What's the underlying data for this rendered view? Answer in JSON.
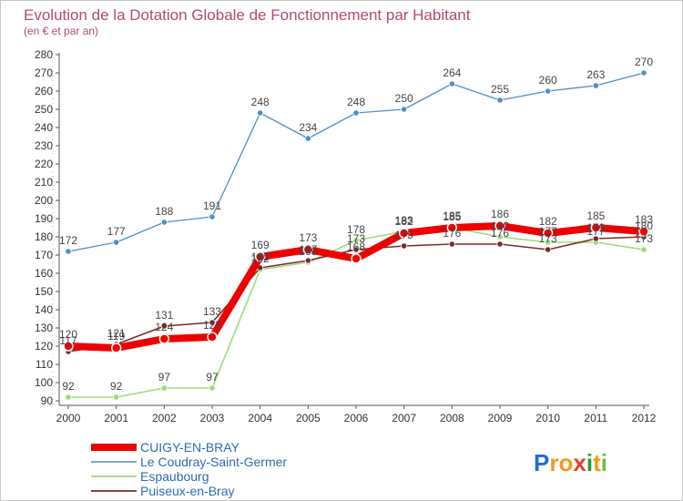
{
  "chart_data": {
    "type": "line",
    "title": "Evolution de la Dotation Globale de Fonctionnement par Habitant",
    "subtitle": "(en € et par an)",
    "xlabel": "",
    "ylabel": "",
    "categories": [
      "2000",
      "2001",
      "2002",
      "2003",
      "2004",
      "2005",
      "2006",
      "2007",
      "2008",
      "2009",
      "2010",
      "2011",
      "2012"
    ],
    "ylim": [
      90,
      280
    ],
    "yticks": [
      90,
      100,
      110,
      120,
      130,
      140,
      150,
      160,
      170,
      180,
      190,
      200,
      210,
      220,
      230,
      240,
      250,
      260,
      270,
      280
    ],
    "grid": false,
    "legend_position": "bottom-left",
    "series": [
      {
        "name": "Le Coudray-Saint-Germer",
        "color": "#4d8fc8",
        "values": [
          172,
          177,
          188,
          191,
          248,
          234,
          248,
          250,
          264,
          255,
          260,
          263,
          270
        ]
      },
      {
        "name": "Espaubourg",
        "color": "#99dd77",
        "values": [
          92,
          92,
          97,
          97,
          162,
          166,
          178,
          183,
          185,
          180,
          177,
          177,
          173
        ]
      },
      {
        "name": "Puiseux-en-Bray",
        "color": "#7a2a2a",
        "values": [
          117,
          121,
          131,
          133,
          163,
          167,
          173,
          175,
          176,
          176,
          173,
          179,
          180
        ]
      },
      {
        "name": "CUIGY-EN-BRAY",
        "color": "#ee0000",
        "values": [
          120,
          119,
          124,
          125,
          169,
          173,
          168,
          182,
          185,
          186,
          182,
          185,
          183
        ]
      }
    ],
    "legend_order": [
      3,
      0,
      1,
      2
    ]
  },
  "brand": {
    "logo_text": "Proxiti"
  }
}
